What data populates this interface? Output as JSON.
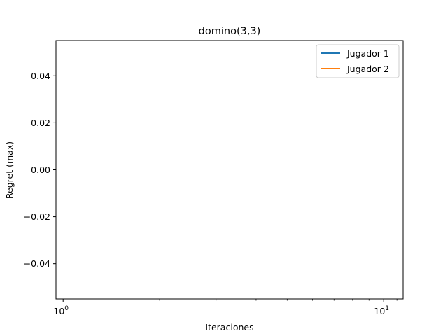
{
  "chart_data": {
    "type": "line",
    "title": "domino(3,3)",
    "xlabel": "Iteraciones",
    "ylabel": "Regret (max)",
    "xscale": "log",
    "xlim": [
      0.95,
      11.5
    ],
    "ylim": [
      -0.055,
      0.055
    ],
    "x_major_ticks": [
      {
        "value": 1,
        "base": "10",
        "exp": "0"
      },
      {
        "value": 10,
        "base": "10",
        "exp": "1"
      }
    ],
    "x_minor_ticks": [
      2,
      3,
      4,
      5,
      6,
      7,
      8,
      9,
      11
    ],
    "y_ticks": [
      {
        "value": 0.04,
        "label": "0.04"
      },
      {
        "value": 0.02,
        "label": "0.02"
      },
      {
        "value": 0.0,
        "label": "0.00"
      },
      {
        "value": -0.02,
        "label": "−0.02"
      },
      {
        "value": -0.04,
        "label": "−0.04"
      }
    ],
    "grid": false,
    "legend_position": "top-right",
    "series": [
      {
        "name": "Jugador 1",
        "color": "#1f77b4",
        "x": [],
        "y": []
      },
      {
        "name": "Jugador 2",
        "color": "#ff7f0e",
        "x": [],
        "y": []
      }
    ]
  }
}
